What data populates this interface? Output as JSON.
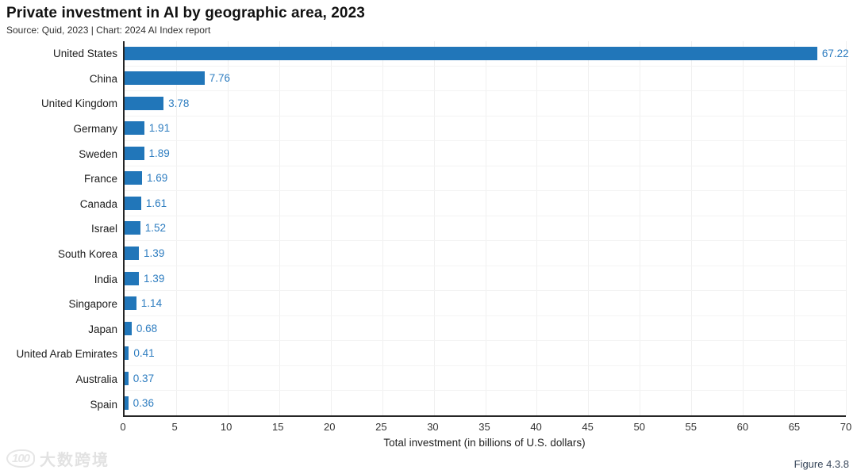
{
  "header": {
    "title": "Private investment in AI by geographic area, 2023",
    "source": "Source: Quid, 2023 | Chart: 2024 AI Index report"
  },
  "chart_data": {
    "type": "bar",
    "orientation": "horizontal",
    "title": "Private investment in AI by geographic area, 2023",
    "categories": [
      "United States",
      "China",
      "United Kingdom",
      "Germany",
      "Sweden",
      "France",
      "Canada",
      "Israel",
      "South Korea",
      "India",
      "Singapore",
      "Japan",
      "United Arab Emirates",
      "Australia",
      "Spain"
    ],
    "values": [
      67.22,
      7.76,
      3.78,
      1.91,
      1.89,
      1.69,
      1.61,
      1.52,
      1.39,
      1.39,
      1.14,
      0.68,
      0.41,
      0.37,
      0.36
    ],
    "xlabel": "Total investment (in billions of U.S. dollars)",
    "ylabel": "",
    "xlim": [
      0,
      70
    ],
    "xticks": [
      0,
      5,
      10,
      15,
      20,
      25,
      30,
      35,
      40,
      45,
      50,
      55,
      60,
      65,
      70
    ],
    "grid": true,
    "legend": "none",
    "bar_color": "#2176b9",
    "value_label_color": "#2e7dc0"
  },
  "footer": {
    "watermark_logo": "100",
    "watermark": "大数跨境",
    "figure_label": "Figure 4.3.8"
  }
}
